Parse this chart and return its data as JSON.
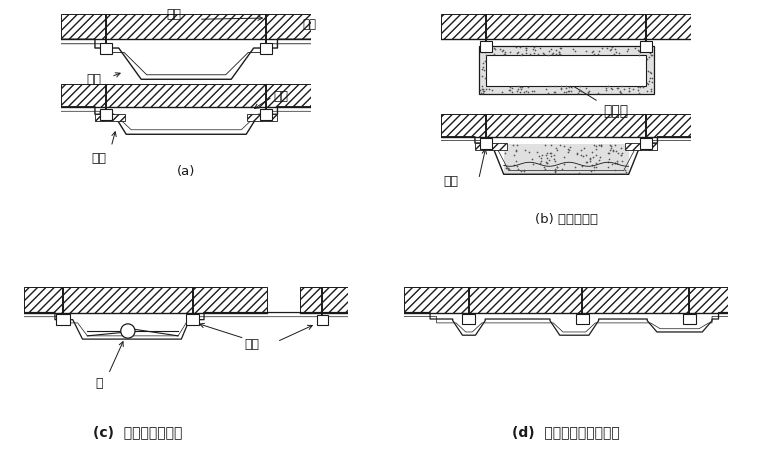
{
  "bg_color": "#ffffff",
  "lc": "#1a1a1a",
  "hatch_density": "////",
  "labels": {
    "anchor_bolt": "锚栓",
    "lining": "衬砌",
    "pipe_material": "管材",
    "board": "板材",
    "clamp_a": "夹具",
    "insulation": "隔热材",
    "clamp_b": "夹具",
    "pipe": "管",
    "plug": "栓材",
    "caption_a": "(a)",
    "caption_b": "(b) 使用隔热材",
    "caption_c": "(c)  管内可能清扫者",
    "caption_d": "(d)  管井列呈面状导水者"
  },
  "fs_label": 8.5,
  "fs_caption": 9.5
}
